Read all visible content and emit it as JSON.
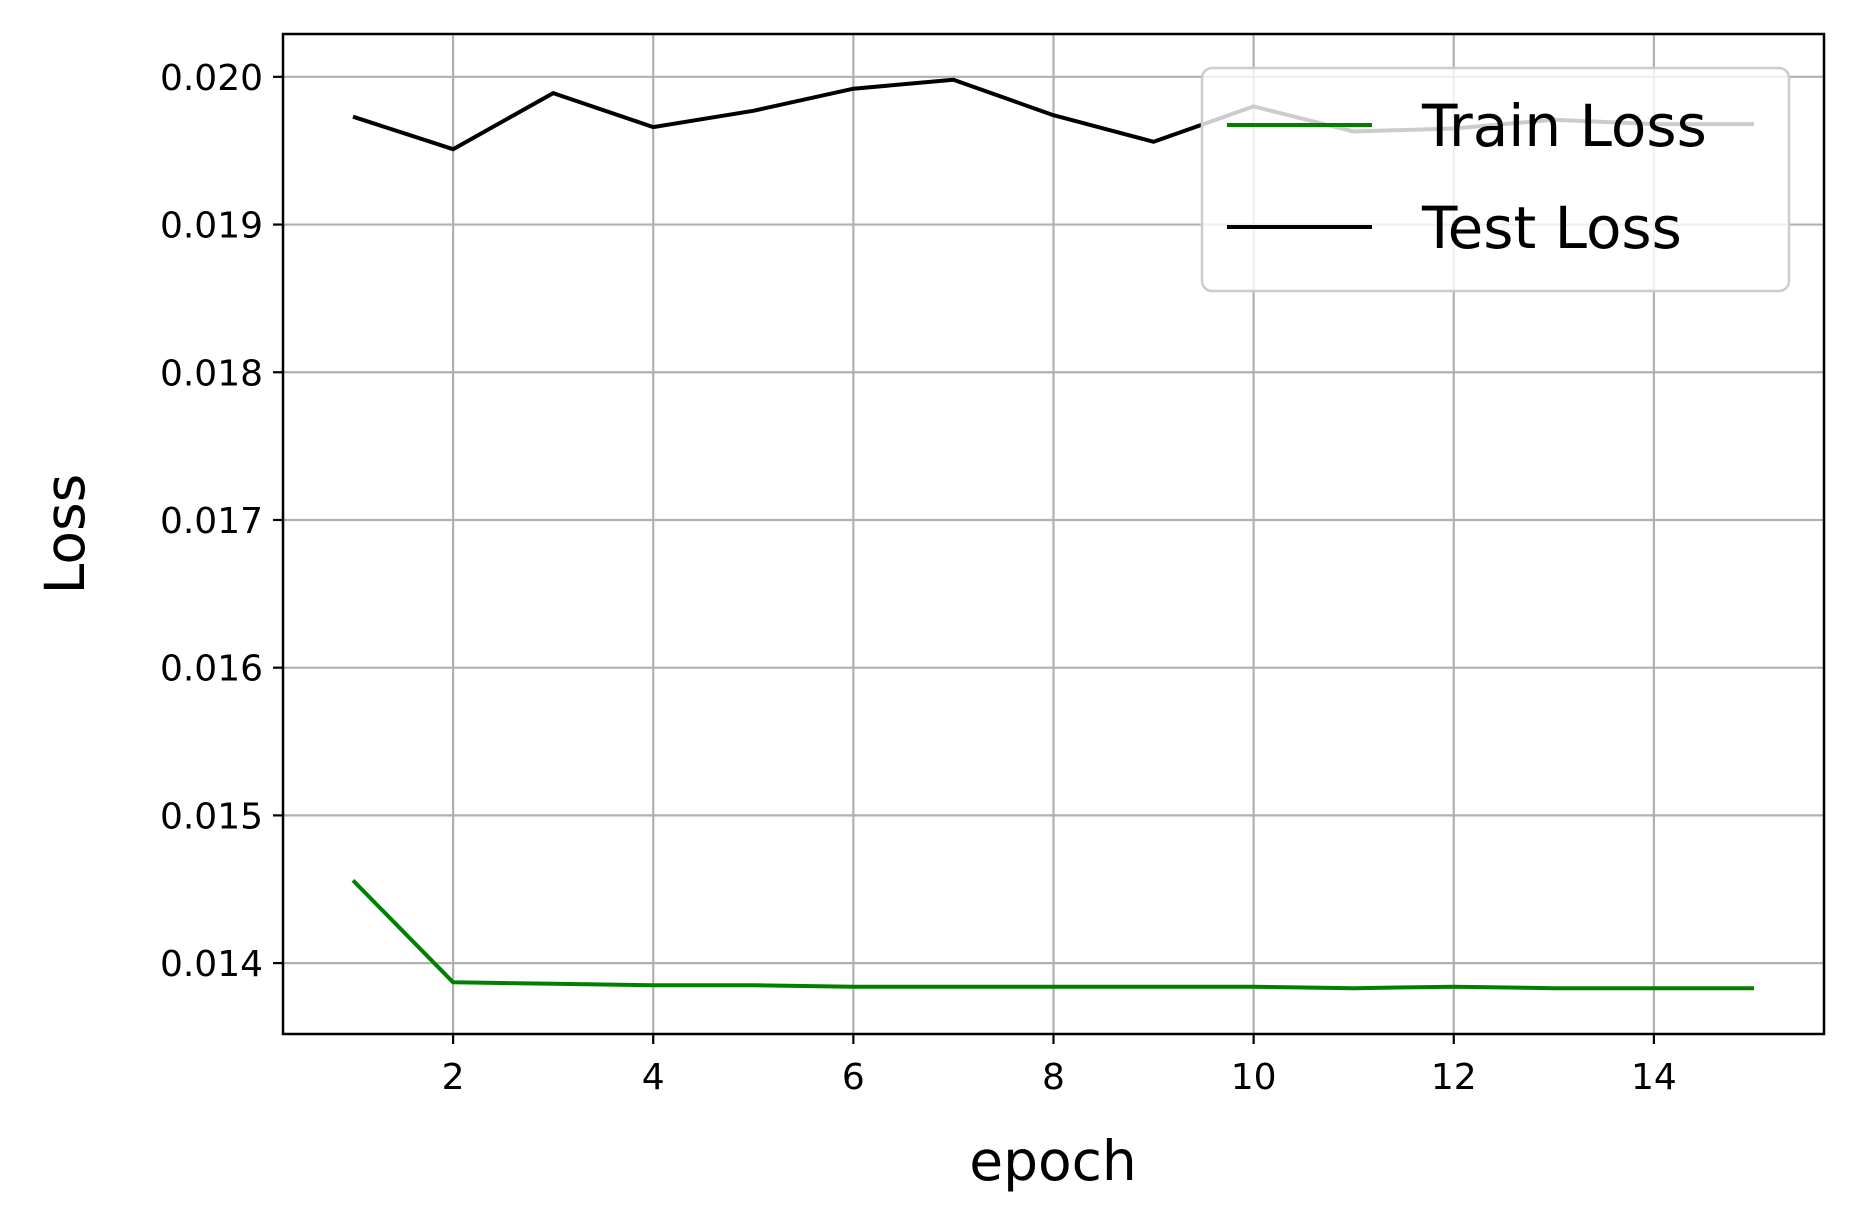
{
  "chart_data": {
    "type": "line",
    "title": "",
    "xlabel": "epoch",
    "ylabel": "Loss",
    "xlim": [
      0.3,
      15.7
    ],
    "ylim": [
      0.01352,
      0.02029
    ],
    "xticks": [
      2,
      4,
      6,
      8,
      10,
      12,
      14
    ],
    "yticks": [
      0.014,
      0.015,
      0.016,
      0.017,
      0.018,
      0.019,
      0.02
    ],
    "ytick_format": "fixed3",
    "grid": true,
    "legend_position": "top-right",
    "x": [
      1,
      2,
      3,
      4,
      5,
      6,
      7,
      8,
      9,
      10,
      11,
      12,
      13,
      14,
      15
    ],
    "series": [
      {
        "name": "Train Loss",
        "color": "#008000",
        "values": [
          0.01456,
          0.01387,
          0.01386,
          0.01385,
          0.01385,
          0.01384,
          0.01384,
          0.01384,
          0.01384,
          0.01384,
          0.01383,
          0.01384,
          0.01383,
          0.01383,
          0.01383
        ]
      },
      {
        "name": "Test Loss",
        "color": "#000000",
        "values": [
          0.01973,
          0.01951,
          0.01989,
          0.01966,
          0.01977,
          0.01992,
          0.01998,
          0.01974,
          0.01956,
          0.0198,
          0.01963,
          0.01965,
          0.01971,
          0.01968,
          0.01968
        ]
      }
    ]
  }
}
